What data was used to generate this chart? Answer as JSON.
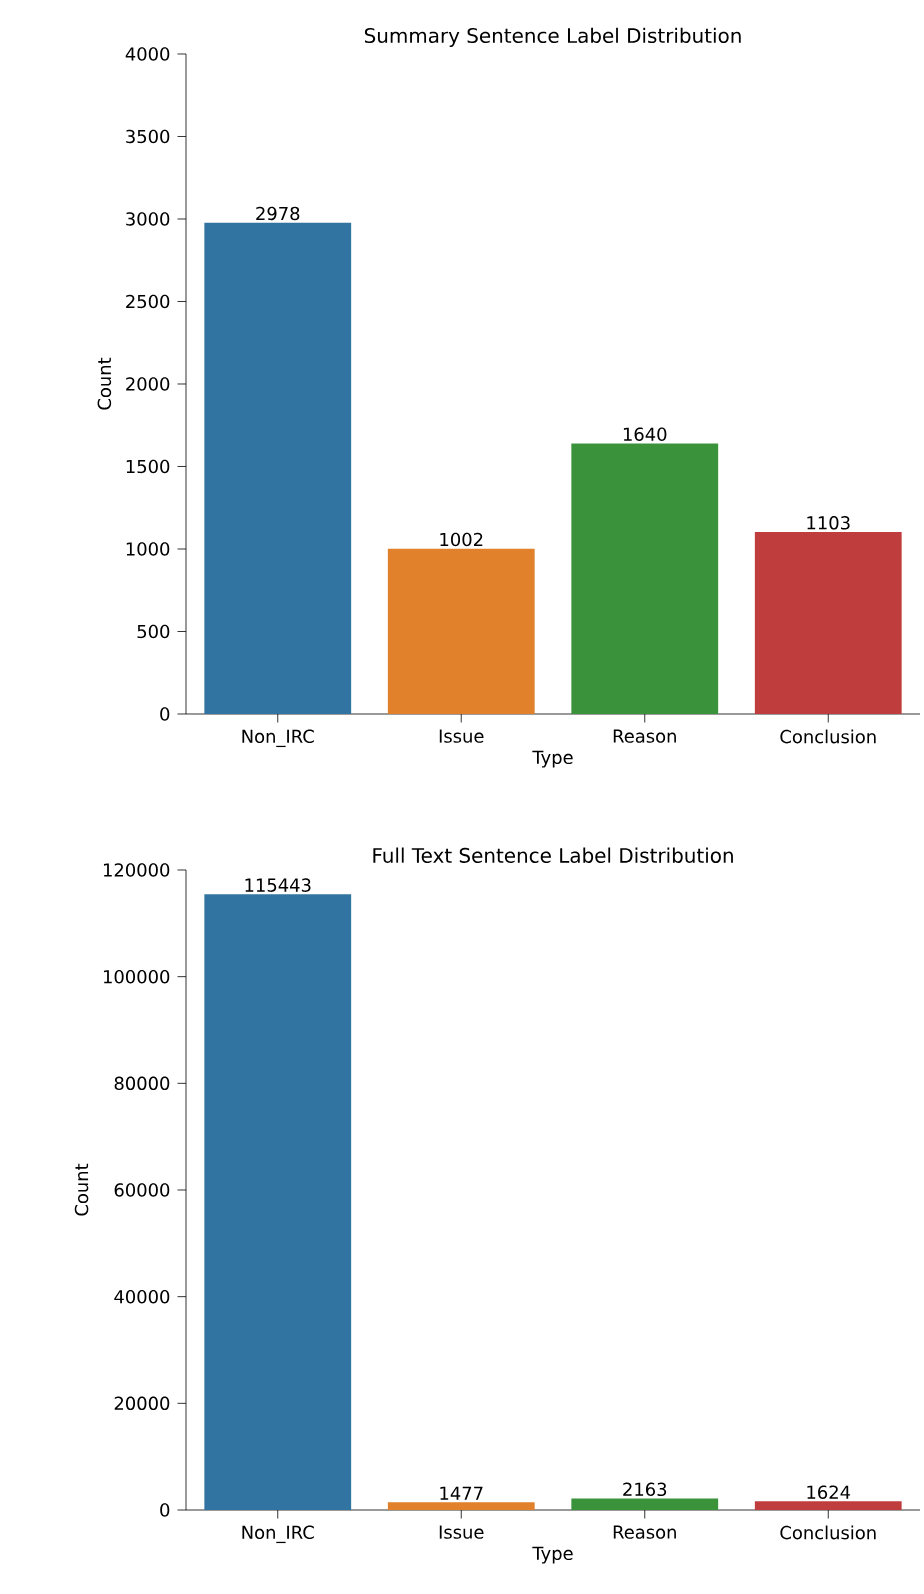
{
  "chart_data": [
    {
      "type": "bar",
      "title": "Summary Sentence Label Distribution",
      "xlabel": "Type",
      "ylabel": "Count",
      "categories": [
        "Non_IRC",
        "Issue",
        "Reason",
        "Conclusion"
      ],
      "values": [
        2978,
        1002,
        1640,
        1103
      ],
      "colors": [
        "#3274a1",
        "#e1812c",
        "#3a923a",
        "#c03d3e"
      ],
      "ylim": [
        0,
        4000
      ],
      "yticks": [
        0,
        500,
        1000,
        1500,
        2000,
        2500,
        3000,
        3500,
        4000
      ],
      "data_labels": true,
      "grid": false
    },
    {
      "type": "bar",
      "title": "Full Text Sentence Label Distribution",
      "xlabel": "Type",
      "ylabel": "Count",
      "categories": [
        "Non_IRC",
        "Issue",
        "Reason",
        "Conclusion"
      ],
      "values": [
        115443,
        1477,
        2163,
        1624
      ],
      "colors": [
        "#3274a1",
        "#e1812c",
        "#3a923a",
        "#c03d3e"
      ],
      "ylim": [
        0,
        120000
      ],
      "yticks": [
        0,
        20000,
        40000,
        60000,
        80000,
        100000,
        120000
      ],
      "data_labels": true,
      "grid": false
    }
  ]
}
